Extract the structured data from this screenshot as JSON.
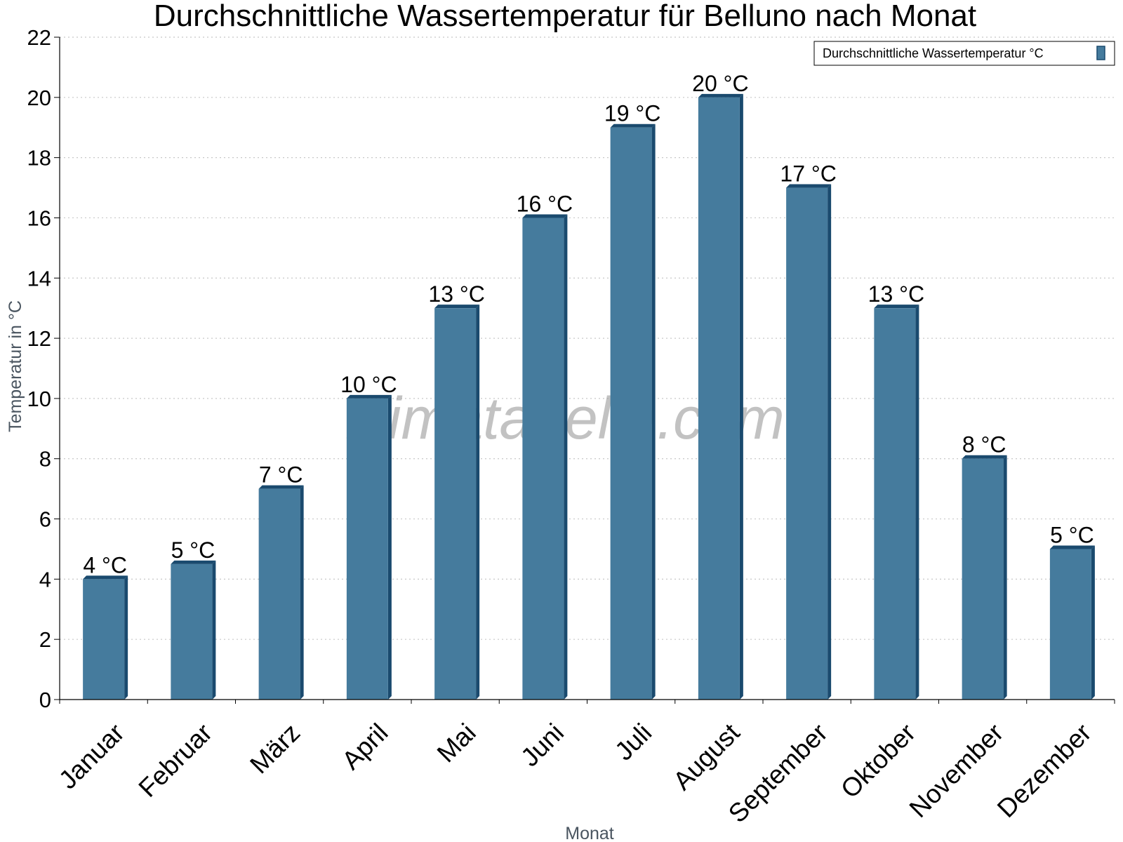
{
  "chart_data": {
    "type": "bar",
    "title": "Durchschnittliche Wassertemperatur für Belluno nach Monat",
    "xlabel": "Monat",
    "ylabel": "Temperatur in °C",
    "ylim": [
      0,
      22
    ],
    "yticks": [
      0,
      2,
      4,
      6,
      8,
      10,
      12,
      14,
      16,
      18,
      20,
      22
    ],
    "grid": true,
    "legend_position": "top-right",
    "categories": [
      "Januar",
      "Februar",
      "März",
      "April",
      "Mai",
      "Juni",
      "Juli",
      "August",
      "September",
      "Oktober",
      "November",
      "Dezember"
    ],
    "series": [
      {
        "name": "Durchschnittliche Wassertemperatur °C",
        "color": "#457b9d",
        "values": [
          4,
          4.5,
          7,
          10,
          13,
          16,
          19,
          20,
          17,
          13,
          8,
          5
        ],
        "labels": [
          "4 °C",
          "5 °C",
          "7 °C",
          "10 °C",
          "13 °C",
          "16 °C",
          "19 °C",
          "20 °C",
          "17 °C",
          "13 °C",
          "8 °C",
          "5 °C"
        ]
      }
    ]
  },
  "watermark": "klimatabelle.com",
  "colors": {
    "bar": "#457b9d",
    "bar_dark": "#1a4a6e",
    "grid": "#c8c8c8"
  }
}
